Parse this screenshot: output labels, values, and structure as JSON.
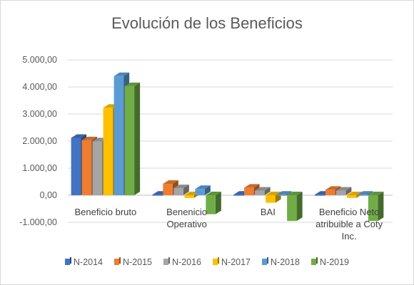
{
  "chart_data": {
    "type": "bar",
    "style": "3d-clustered-column",
    "title": "Evolución de los Beneficios",
    "categories": [
      [
        "Beneficio bruto"
      ],
      [
        "Benenicio",
        "Operativo"
      ],
      [
        "BAI"
      ],
      [
        "Beneficio Neto",
        "atribuible a Coty",
        "Inc."
      ]
    ],
    "series": [
      {
        "name": "N-2014",
        "color": "#4472C4",
        "values": [
          2120,
          20,
          20,
          20
        ]
      },
      {
        "name": "N-2015",
        "color": "#ED7D31",
        "values": [
          2030,
          420,
          280,
          200
        ]
      },
      {
        "name": "N-2016",
        "color": "#A5A5A5",
        "values": [
          1990,
          260,
          170,
          170
        ]
      },
      {
        "name": "N-2017",
        "color": "#FFC000",
        "values": [
          3230,
          -100,
          -280,
          -100
        ]
      },
      {
        "name": "N-2018",
        "color": "#5B9BD5",
        "values": [
          4400,
          230,
          20,
          20
        ]
      },
      {
        "name": "N-2019",
        "color": "#70AD47",
        "values": [
          4030,
          -700,
          -950,
          -950
        ]
      }
    ],
    "y_ticks": [
      "5.000,00",
      "4.000,00",
      "3.000,00",
      "2.000,00",
      "1.000,00",
      "0,00",
      "-1.000,00"
    ],
    "ylim": [
      -1000,
      5000
    ],
    "ytick_step": 1000,
    "grid": "horizontal",
    "legend_position": "bottom"
  }
}
